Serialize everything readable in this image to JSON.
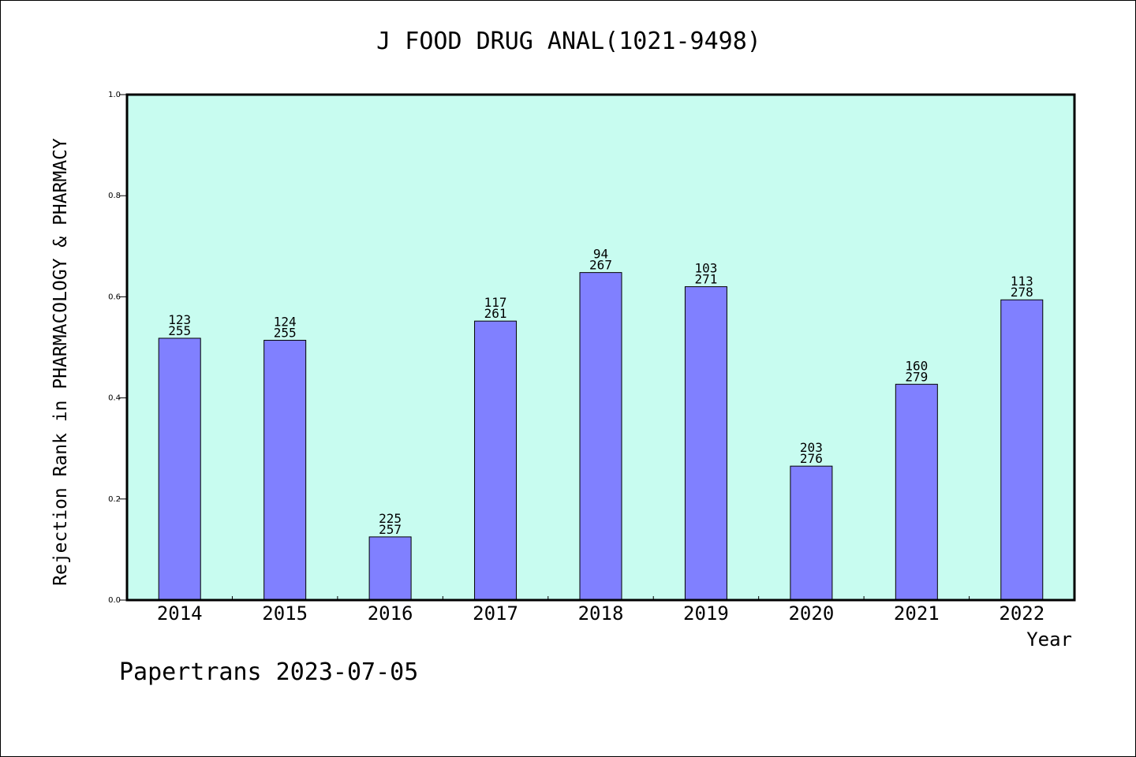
{
  "chart_data": {
    "type": "bar",
    "title": "J FOOD DRUG ANAL(1021-9498)",
    "xlabel": "Year",
    "ylabel": "Rejection Rank in PHARMACOLOGY & PHARMACY",
    "ylim": [
      0,
      1.0
    ],
    "yticks": [
      "0.0",
      "0.2",
      "0.4",
      "0.6",
      "0.8",
      "1.0"
    ],
    "categories": [
      "2014",
      "2015",
      "2016",
      "2017",
      "2018",
      "2019",
      "2020",
      "2021",
      "2022"
    ],
    "values": [
      0.518,
      0.514,
      0.125,
      0.552,
      0.648,
      0.62,
      0.265,
      0.427,
      0.594
    ],
    "annotations": [
      [
        "123",
        "255"
      ],
      [
        "124",
        "255"
      ],
      [
        "225",
        "257"
      ],
      [
        "117",
        "261"
      ],
      [
        "94",
        "267"
      ],
      [
        "103",
        "271"
      ],
      [
        "203",
        "276"
      ],
      [
        "160",
        "279"
      ],
      [
        "113",
        "278"
      ]
    ],
    "grid": false,
    "legend": "none",
    "colors": {
      "bar": "#8080ff",
      "plot_background": "#c8fcf0",
      "axis": "#000000"
    }
  },
  "footer": "Papertrans 2023-07-05"
}
